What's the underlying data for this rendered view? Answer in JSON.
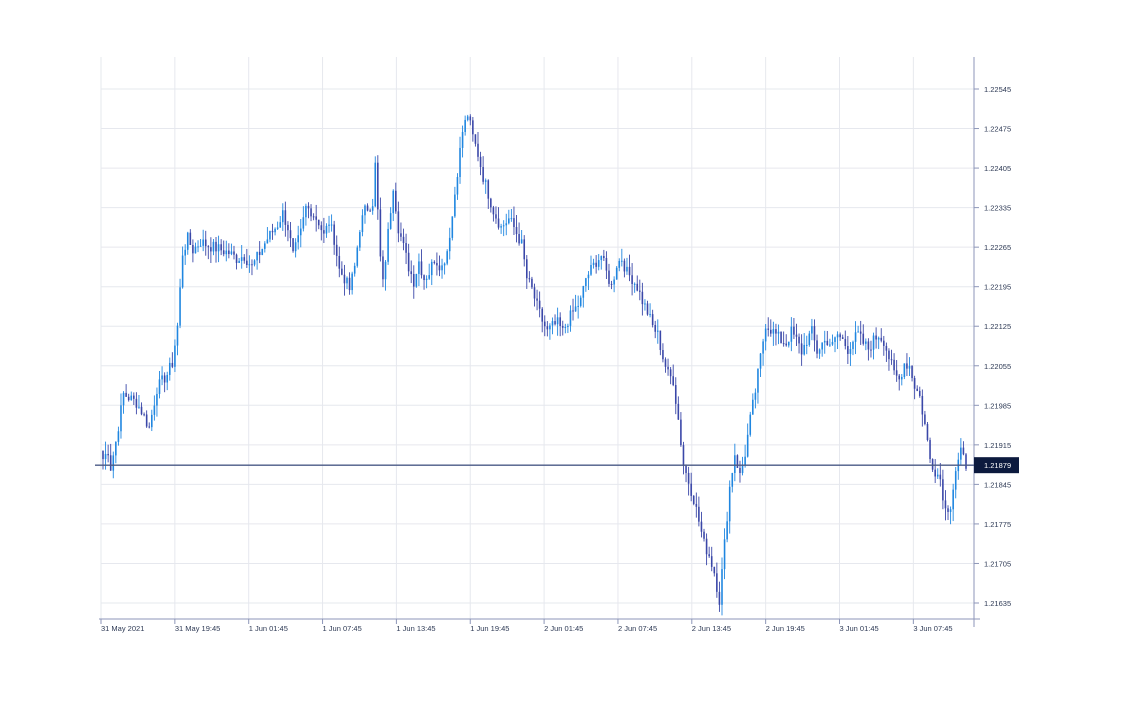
{
  "chart_data": {
    "type": "candlestick",
    "instrument_hint": "",
    "x_tick_labels": [
      "31 May 2021",
      "31 May 19:45",
      "1 Jun 01:45",
      "1 Jun 07:45",
      "1 Jun 13:45",
      "1 Jun 19:45",
      "2 Jun 01:45",
      "2 Jun 07:45",
      "2 Jun 13:45",
      "2 Jun 19:45",
      "3 Jun 01:45",
      "3 Jun 07:45"
    ],
    "y_tick_labels": [
      "1.22545",
      "1.22475",
      "1.22405",
      "1.22335",
      "1.22265",
      "1.22195",
      "1.22125",
      "1.22055",
      "1.21985",
      "1.21915",
      "1.21845",
      "1.21775",
      "1.21705",
      "1.21635"
    ],
    "y_ticks": [
      1.22545,
      1.22475,
      1.22405,
      1.22335,
      1.22265,
      1.22195,
      1.22125,
      1.22055,
      1.21985,
      1.21915,
      1.21845,
      1.21775,
      1.21705,
      1.21635
    ],
    "ylim": [
      1.2161,
      1.2261
    ],
    "current_price": 1.21879,
    "current_price_label": "1.21879",
    "grid": true,
    "colors": {
      "up": "#1f86e0",
      "down": "#3a47a8",
      "grid": "#e6e8ee",
      "axis": "#8d96b8",
      "price_line": "#4a5a86",
      "price_tag_bg": "#0c1a3e"
    },
    "close_path": [
      [
        0,
        1.2189
      ],
      [
        2,
        1.21905
      ],
      [
        3,
        1.21875
      ],
      [
        5,
        1.2192
      ],
      [
        8,
        1.22005
      ],
      [
        13,
        1.2199
      ],
      [
        15,
        1.21975
      ],
      [
        18,
        1.21945
      ],
      [
        21,
        1.22015
      ],
      [
        25,
        1.2204
      ],
      [
        27,
        1.2206
      ],
      [
        29,
        1.22125
      ],
      [
        31,
        1.22255
      ],
      [
        33,
        1.2228
      ],
      [
        35,
        1.2226
      ],
      [
        38,
        1.22275
      ],
      [
        40,
        1.2227
      ],
      [
        43,
        1.22265
      ],
      [
        46,
        1.2226
      ],
      [
        49,
        1.22255
      ],
      [
        52,
        1.22245
      ],
      [
        55,
        1.2225
      ],
      [
        58,
        1.2223
      ],
      [
        61,
        1.22255
      ],
      [
        64,
        1.2228
      ],
      [
        68,
        1.22305
      ],
      [
        70,
        1.22325
      ],
      [
        72,
        1.223
      ],
      [
        74,
        1.2225
      ],
      [
        77,
        1.2229
      ],
      [
        79,
        1.22335
      ],
      [
        81,
        1.2233
      ],
      [
        84,
        1.2231
      ],
      [
        86,
        1.22285
      ],
      [
        88,
        1.2231
      ],
      [
        90,
        1.2228
      ],
      [
        92,
        1.22225
      ],
      [
        94,
        1.2221
      ],
      [
        96,
        1.2219
      ],
      [
        98,
        1.2223
      ],
      [
        100,
        1.223
      ],
      [
        102,
        1.2233
      ],
      [
        105,
        1.22345
      ],
      [
        106,
        1.2241
      ],
      [
        108,
        1.22245
      ],
      [
        109,
        1.222
      ],
      [
        111,
        1.2229
      ],
      [
        113,
        1.22375
      ],
      [
        115,
        1.223
      ],
      [
        117,
        1.22265
      ],
      [
        119,
        1.2223
      ],
      [
        121,
        1.22205
      ],
      [
        123,
        1.2224
      ],
      [
        125,
        1.2221
      ],
      [
        127,
        1.2222
      ],
      [
        129,
        1.22245
      ],
      [
        132,
        1.2223
      ],
      [
        134,
        1.2226
      ],
      [
        136,
        1.2232
      ],
      [
        138,
        1.224
      ],
      [
        140,
        1.2247
      ],
      [
        142,
        1.225
      ],
      [
        144,
        1.2246
      ],
      [
        146,
        1.2243
      ],
      [
        148,
        1.2239
      ],
      [
        150,
        1.2236
      ],
      [
        152,
        1.2233
      ],
      [
        155,
        1.223
      ],
      [
        158,
        1.22315
      ],
      [
        160,
        1.223
      ],
      [
        163,
        1.2227
      ],
      [
        165,
        1.2221
      ],
      [
        167,
        1.2219
      ],
      [
        169,
        1.2216
      ],
      [
        171,
        1.22135
      ],
      [
        173,
        1.22115
      ],
      [
        175,
        1.22125
      ],
      [
        177,
        1.2213
      ],
      [
        179,
        1.22115
      ],
      [
        181,
        1.22135
      ],
      [
        183,
        1.2215
      ],
      [
        186,
        1.2217
      ],
      [
        188,
        1.2221
      ],
      [
        190,
        1.22225
      ],
      [
        192,
        1.2224
      ],
      [
        194,
        1.2225
      ],
      [
        196,
        1.2222
      ],
      [
        198,
        1.22195
      ],
      [
        200,
        1.22235
      ],
      [
        202,
        1.22245
      ],
      [
        204,
        1.2222
      ],
      [
        206,
        1.2221
      ],
      [
        208,
        1.22195
      ],
      [
        210,
        1.2217
      ],
      [
        212,
        1.2215
      ],
      [
        214,
        1.22125
      ],
      [
        216,
        1.2211
      ],
      [
        218,
        1.2207
      ],
      [
        220,
        1.2204
      ],
      [
        222,
        1.2203
      ],
      [
        224,
        1.2196
      ],
      [
        226,
        1.2188
      ],
      [
        228,
        1.2185
      ],
      [
        230,
        1.2182
      ],
      [
        232,
        1.2178
      ],
      [
        234,
        1.2174
      ],
      [
        236,
        1.2172
      ],
      [
        238,
        1.2169
      ],
      [
        240,
        1.2164
      ],
      [
        242,
        1.2174
      ],
      [
        244,
        1.2184
      ],
      [
        246,
        1.219
      ],
      [
        248,
        1.2186
      ],
      [
        250,
        1.219
      ],
      [
        252,
        1.2196
      ],
      [
        254,
        1.2201
      ],
      [
        256,
        1.2207
      ],
      [
        258,
        1.2213
      ],
      [
        260,
        1.2212
      ],
      [
        262,
        1.2211
      ],
      [
        264,
        1.221
      ],
      [
        266,
        1.22095
      ],
      [
        268,
        1.22115
      ],
      [
        270,
        1.221
      ],
      [
        272,
        1.2208
      ],
      [
        274,
        1.221
      ],
      [
        276,
        1.22115
      ],
      [
        278,
        1.2208
      ],
      [
        280,
        1.22095
      ],
      [
        282,
        1.221
      ],
      [
        284,
        1.2209
      ],
      [
        286,
        1.2211
      ],
      [
        288,
        1.221
      ],
      [
        290,
        1.22085
      ],
      [
        292,
        1.221
      ],
      [
        294,
        1.2211
      ],
      [
        296,
        1.22095
      ],
      [
        298,
        1.22085
      ],
      [
        300,
        1.221
      ],
      [
        302,
        1.2211
      ],
      [
        304,
        1.221
      ],
      [
        306,
        1.2207
      ],
      [
        308,
        1.2204
      ],
      [
        310,
        1.2203
      ],
      [
        312,
        1.2206
      ],
      [
        314,
        1.22055
      ],
      [
        316,
        1.2202
      ],
      [
        318,
        1.22
      ],
      [
        320,
        1.2195
      ],
      [
        322,
        1.2189
      ],
      [
        324,
        1.2187
      ],
      [
        326,
        1.21855
      ],
      [
        328,
        1.218
      ],
      [
        330,
        1.2181
      ],
      [
        332,
        1.2187
      ],
      [
        334,
        1.219
      ],
      [
        336,
        1.2188
      ]
    ]
  },
  "legend_colors": {
    "up": "#1f86e0",
    "down": "#3a47a8"
  }
}
